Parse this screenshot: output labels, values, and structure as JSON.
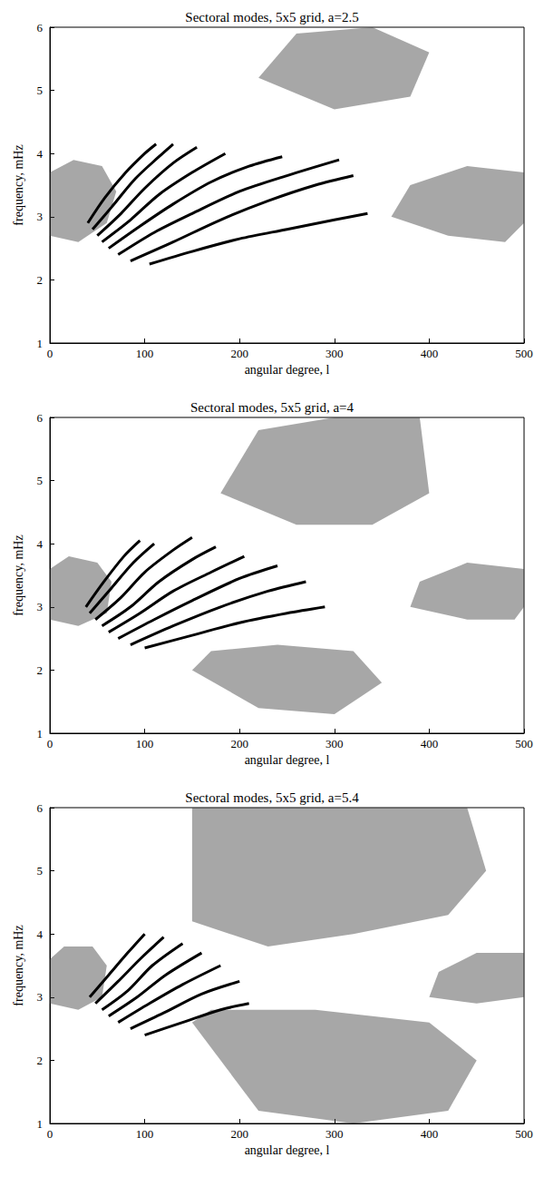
{
  "chart_data": [
    {
      "type": "line",
      "title": "Sectoral modes, 5x5 grid, a=2.5",
      "x_label": "angular degree, l",
      "y_label": "frequency, mHz",
      "xlim": [
        0,
        500
      ],
      "ylim": [
        1,
        6
      ],
      "xticks": [
        0,
        100,
        200,
        300,
        400,
        500
      ],
      "yticks": [
        1,
        2,
        3,
        4,
        5,
        6
      ],
      "color": "#000000",
      "ridges": [
        {
          "x": [
            105,
            150,
            200,
            250,
            300,
            335
          ],
          "y": [
            2.25,
            2.45,
            2.65,
            2.8,
            2.95,
            3.05
          ]
        },
        {
          "x": [
            85,
            130,
            180,
            230,
            280,
            320
          ],
          "y": [
            2.3,
            2.6,
            2.95,
            3.25,
            3.5,
            3.65
          ]
        },
        {
          "x": [
            72,
            110,
            150,
            200,
            250,
            305
          ],
          "y": [
            2.4,
            2.75,
            3.05,
            3.4,
            3.65,
            3.9
          ]
        },
        {
          "x": [
            62,
            95,
            130,
            170,
            210,
            245
          ],
          "y": [
            2.5,
            2.85,
            3.2,
            3.55,
            3.8,
            3.95
          ]
        },
        {
          "x": [
            55,
            85,
            115,
            150,
            185
          ],
          "y": [
            2.6,
            2.95,
            3.35,
            3.7,
            4.0
          ]
        },
        {
          "x": [
            50,
            75,
            100,
            130,
            155
          ],
          "y": [
            2.7,
            3.05,
            3.45,
            3.85,
            4.1
          ]
        },
        {
          "x": [
            45,
            65,
            90,
            115,
            130
          ],
          "y": [
            2.8,
            3.15,
            3.6,
            3.95,
            4.15
          ]
        },
        {
          "x": [
            40,
            58,
            80,
            100,
            112
          ],
          "y": [
            2.9,
            3.3,
            3.7,
            4.0,
            4.15
          ]
        }
      ],
      "patches": [
        {
          "x": [
            0,
            30,
            60,
            70,
            55,
            25,
            0
          ],
          "y": [
            2.7,
            2.6,
            2.9,
            3.4,
            3.8,
            3.9,
            3.7
          ]
        },
        {
          "x": [
            360,
            420,
            480,
            500,
            500,
            440,
            380
          ],
          "y": [
            3.0,
            2.7,
            2.6,
            2.9,
            3.7,
            3.8,
            3.5
          ]
        },
        {
          "x": [
            220,
            300,
            380,
            400,
            340,
            260
          ],
          "y": [
            5.2,
            4.7,
            4.9,
            5.6,
            6.0,
            5.9
          ]
        }
      ]
    },
    {
      "type": "line",
      "title": "Sectoral modes, 5x5 grid, a=4",
      "x_label": "angular degree, l",
      "y_label": "frequency, mHz",
      "xlim": [
        0,
        500
      ],
      "ylim": [
        1,
        6
      ],
      "xticks": [
        0,
        100,
        200,
        300,
        400,
        500
      ],
      "yticks": [
        1,
        2,
        3,
        4,
        5,
        6
      ],
      "color": "#000000",
      "ridges": [
        {
          "x": [
            100,
            150,
            200,
            250,
            290
          ],
          "y": [
            2.35,
            2.55,
            2.75,
            2.9,
            3.0
          ]
        },
        {
          "x": [
            85,
            130,
            180,
            230,
            270
          ],
          "y": [
            2.4,
            2.7,
            3.0,
            3.25,
            3.4
          ]
        },
        {
          "x": [
            72,
            110,
            150,
            200,
            240
          ],
          "y": [
            2.5,
            2.8,
            3.1,
            3.45,
            3.65
          ]
        },
        {
          "x": [
            62,
            95,
            130,
            170,
            205
          ],
          "y": [
            2.6,
            2.9,
            3.25,
            3.55,
            3.8
          ]
        },
        {
          "x": [
            55,
            85,
            115,
            150,
            175
          ],
          "y": [
            2.7,
            3.0,
            3.4,
            3.75,
            3.95
          ]
        },
        {
          "x": [
            48,
            75,
            100,
            130,
            150
          ],
          "y": [
            2.8,
            3.15,
            3.55,
            3.9,
            4.1
          ]
        },
        {
          "x": [
            42,
            65,
            88,
            110
          ],
          "y": [
            2.9,
            3.3,
            3.7,
            4.0
          ]
        },
        {
          "x": [
            38,
            57,
            78,
            95
          ],
          "y": [
            3.0,
            3.4,
            3.8,
            4.05
          ]
        }
      ],
      "patches": [
        {
          "x": [
            0,
            30,
            60,
            65,
            50,
            20,
            0
          ],
          "y": [
            2.8,
            2.7,
            2.9,
            3.4,
            3.7,
            3.8,
            3.6
          ]
        },
        {
          "x": [
            380,
            440,
            490,
            500,
            500,
            440,
            390
          ],
          "y": [
            3.0,
            2.8,
            2.8,
            3.0,
            3.6,
            3.7,
            3.4
          ]
        },
        {
          "x": [
            180,
            260,
            340,
            400,
            390,
            300,
            220
          ],
          "y": [
            4.8,
            4.3,
            4.3,
            4.8,
            6.0,
            6.0,
            5.8
          ]
        },
        {
          "x": [
            150,
            220,
            300,
            350,
            320,
            240,
            170
          ],
          "y": [
            2.0,
            1.4,
            1.3,
            1.8,
            2.3,
            2.4,
            2.3
          ]
        }
      ]
    },
    {
      "type": "line",
      "title": "Sectoral modes, 5x5 grid, a=5.4",
      "x_label": "angular degree, l",
      "y_label": "frequency, mHz",
      "xlim": [
        0,
        500
      ],
      "ylim": [
        1,
        6
      ],
      "xticks": [
        0,
        100,
        200,
        300,
        400,
        500
      ],
      "yticks": [
        1,
        2,
        3,
        4,
        5,
        6
      ],
      "color": "#000000",
      "ridges": [
        {
          "x": [
            100,
            140,
            180,
            210
          ],
          "y": [
            2.4,
            2.6,
            2.8,
            2.9
          ]
        },
        {
          "x": [
            85,
            120,
            160,
            200
          ],
          "y": [
            2.5,
            2.75,
            3.05,
            3.25
          ]
        },
        {
          "x": [
            72,
            105,
            140,
            180
          ],
          "y": [
            2.6,
            2.9,
            3.2,
            3.5
          ]
        },
        {
          "x": [
            62,
            92,
            122,
            160
          ],
          "y": [
            2.7,
            3.0,
            3.35,
            3.7
          ]
        },
        {
          "x": [
            55,
            82,
            108,
            140
          ],
          "y": [
            2.8,
            3.1,
            3.5,
            3.85
          ]
        },
        {
          "x": [
            48,
            72,
            95,
            120
          ],
          "y": [
            2.9,
            3.25,
            3.6,
            3.95
          ]
        },
        {
          "x": [
            42,
            62,
            82,
            100
          ],
          "y": [
            3.0,
            3.35,
            3.7,
            4.0
          ]
        }
      ],
      "patches": [
        {
          "x": [
            0,
            30,
            55,
            60,
            45,
            15,
            0
          ],
          "y": [
            2.9,
            2.8,
            3.0,
            3.5,
            3.8,
            3.8,
            3.6
          ]
        },
        {
          "x": [
            400,
            450,
            500,
            500,
            450,
            410
          ],
          "y": [
            3.0,
            2.9,
            3.0,
            3.7,
            3.7,
            3.4
          ]
        },
        {
          "x": [
            150,
            230,
            320,
            420,
            460,
            440,
            150
          ],
          "y": [
            4.2,
            3.8,
            4.0,
            4.3,
            5.0,
            6.0,
            6.0
          ]
        },
        {
          "x": [
            150,
            220,
            320,
            420,
            450,
            400,
            280,
            170
          ],
          "y": [
            2.6,
            1.2,
            1.0,
            1.2,
            2.0,
            2.6,
            2.8,
            2.8
          ]
        }
      ]
    }
  ]
}
